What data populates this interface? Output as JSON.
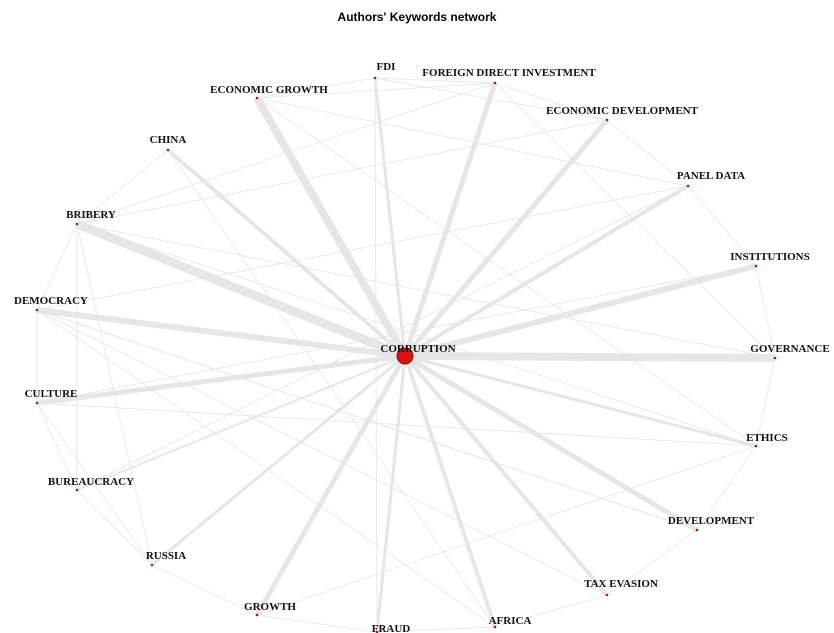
{
  "title": "Authors' Keywords network",
  "nodes": [
    {
      "label": "CORRUPTION"
    },
    {
      "label": "FDI"
    },
    {
      "label": "FOREIGN DIRECT INVESTMENT"
    },
    {
      "label": "ECONOMIC GROWTH"
    },
    {
      "label": "ECONOMIC DEVELOPMENT"
    },
    {
      "label": "CHINA"
    },
    {
      "label": "PANEL DATA"
    },
    {
      "label": "BRIBERY"
    },
    {
      "label": "INSTITUTIONS"
    },
    {
      "label": "DEMOCRACY"
    },
    {
      "label": "GOVERNANCE"
    },
    {
      "label": "CULTURE"
    },
    {
      "label": "ETHICS"
    },
    {
      "label": "BUREAUCRACY"
    },
    {
      "label": "DEVELOPMENT"
    },
    {
      "label": "RUSSIA"
    },
    {
      "label": "TAX EVASION"
    },
    {
      "label": "GROWTH"
    },
    {
      "label": "AFRICA"
    },
    {
      "label": "FRAUD"
    }
  ]
}
